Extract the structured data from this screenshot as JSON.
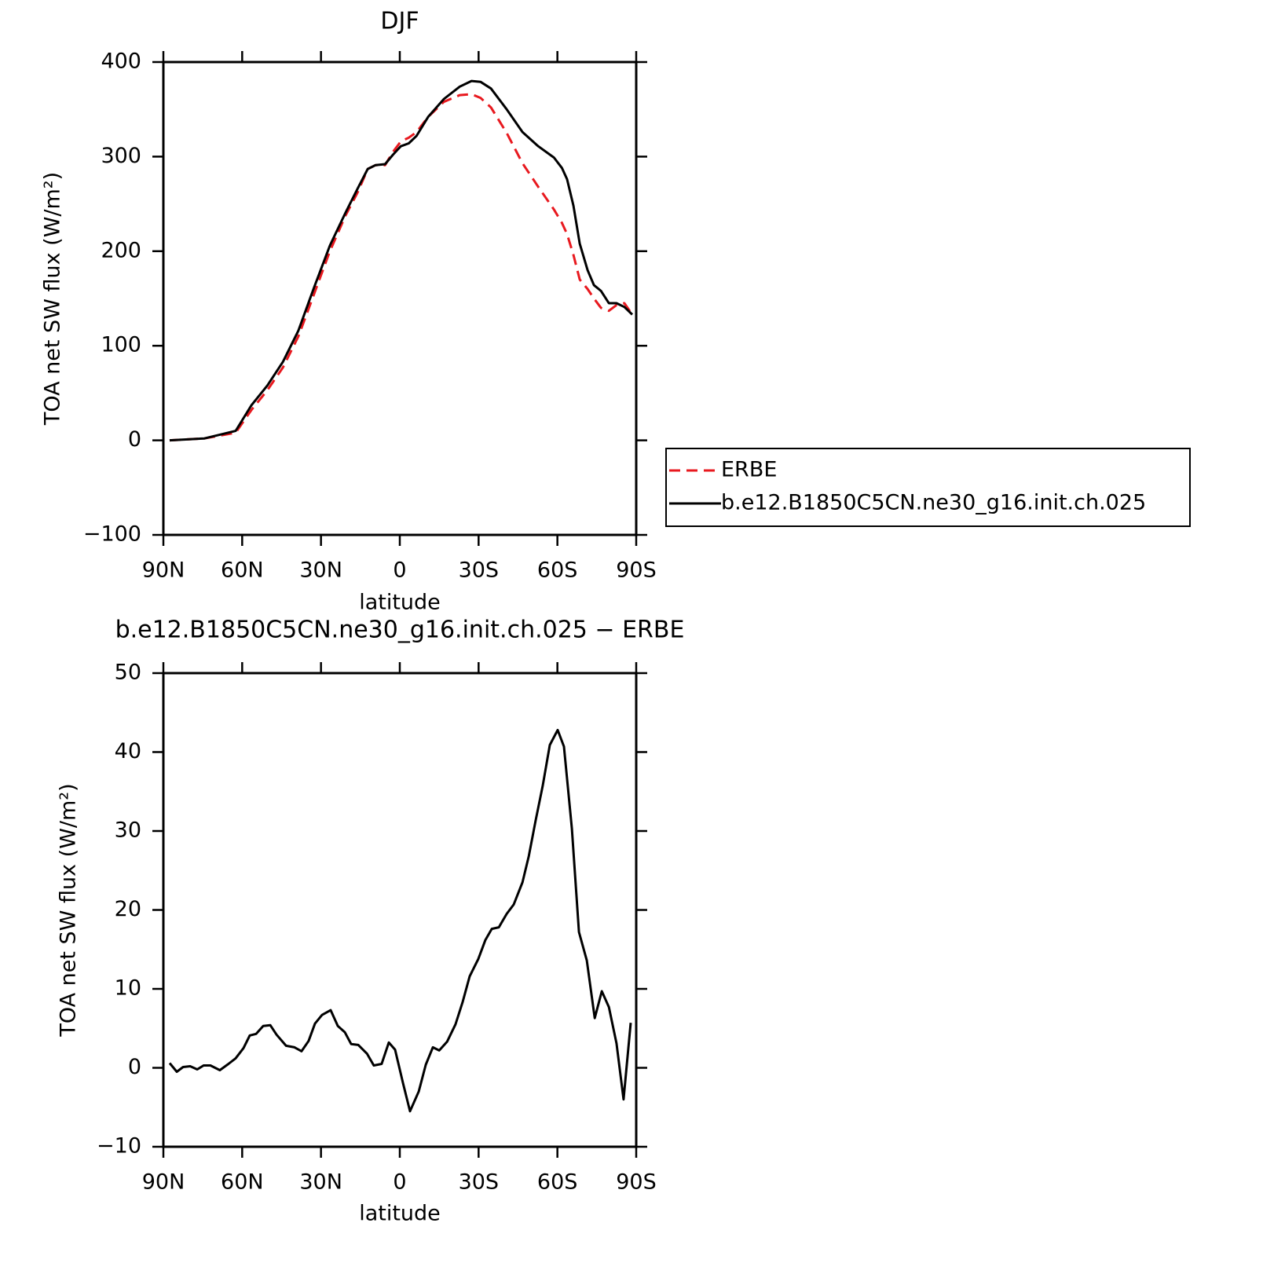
{
  "chart_data": [
    {
      "type": "line",
      "title": "DJF",
      "xlabel": "latitude",
      "ylabel": "TOA net SW flux (W/m²)",
      "x": [
        87.6,
        74.4,
        68.5,
        62.5,
        56.5,
        50.4,
        44.5,
        38.6,
        32.6,
        26.6,
        20.6,
        16.1,
        12.2,
        9.2,
        5.6,
        2.6,
        -0.4,
        -3.4,
        -6.4,
        -10.8,
        -16.8,
        -22.8,
        -27.3,
        -30.8,
        -34.7,
        -40.7,
        -46.7,
        -52.7,
        -58.7,
        -61.7,
        -63.7,
        -66.1,
        -68.5,
        -71.5,
        -73.9,
        -76.6,
        -79.6,
        -82.5,
        -85.5,
        -88.5
      ],
      "series": [
        {
          "name": "ERBE",
          "color": "#e8191f",
          "dashed": true,
          "values": [
            0,
            2,
            5,
            8,
            32,
            53,
            77,
            110,
            155,
            200,
            238,
            262,
            287,
            291,
            291,
            305,
            316,
            320,
            326,
            342,
            358,
            365,
            366,
            362,
            352,
            325,
            293,
            268,
            244,
            230,
            218,
            196,
            170,
            160,
            150,
            140,
            137,
            143,
            145,
            133
          ]
        },
        {
          "name": "b.e12.B1850C5CN.ne30_g16.init.ch.025",
          "color": "#000000",
          "dashed": false,
          "values": [
            0,
            2,
            6,
            10,
            37,
            58,
            83,
            116,
            162,
            206,
            241,
            266,
            287,
            291,
            292,
            302,
            311,
            314,
            322,
            342,
            361,
            374,
            380,
            379,
            372,
            350,
            326,
            311,
            299,
            288,
            276,
            248,
            208,
            180,
            164,
            158,
            145,
            145,
            141,
            133
          ]
        }
      ],
      "xlim": [
        90,
        -90
      ],
      "xticks": [
        {
          "value": 90,
          "label": "90N"
        },
        {
          "value": 60,
          "label": "60N"
        },
        {
          "value": 30,
          "label": "30N"
        },
        0,
        {
          "value": -30,
          "label": "30S"
        },
        {
          "value": -60,
          "label": "60S"
        },
        {
          "value": -90,
          "label": "90S"
        }
      ],
      "ylim": [
        -100,
        400
      ],
      "yticks": [
        {
          "value": -100,
          "label": "−100"
        },
        0,
        100,
        200,
        300,
        400
      ],
      "legend": "right"
    },
    {
      "type": "line",
      "title": "b.e12.B1850C5CN.ne30_g16.init.ch.025 − ERBE",
      "xlabel": "latitude",
      "ylabel": "TOA net SW flux (W/m²)",
      "x": [
        87.6,
        84.9,
        82.5,
        79.8,
        77.1,
        74.7,
        72.1,
        68.5,
        65.2,
        62.5,
        59.5,
        57.1,
        54.7,
        52.0,
        49.3,
        46.9,
        43.3,
        40.1,
        37.4,
        34.7,
        32.3,
        29.6,
        26.3,
        23.6,
        20.9,
        18.5,
        15.8,
        12.5,
        9.9,
        6.9,
        4.2,
        1.8,
        -1.2,
        -3.9,
        -7.2,
        -9.9,
        -12.6,
        -15.0,
        -18.0,
        -21.2,
        -23.9,
        -26.6,
        -29.9,
        -32.6,
        -35.0,
        -37.7,
        -40.7,
        -43.4,
        -46.7,
        -49.1,
        -51.7,
        -54.4,
        -57.1,
        -60.1,
        -62.5,
        -65.5,
        -68.2,
        -71.2,
        -74.2,
        -76.9,
        -79.6,
        -82.5,
        -85.2,
        -87.9
      ],
      "series": [
        {
          "color": "#000000",
          "dashed": false,
          "values": [
            0.6,
            -0.5,
            0.1,
            0.2,
            -0.2,
            0.3,
            0.3,
            -0.3,
            0.5,
            1.2,
            2.5,
            4.1,
            4.3,
            5.3,
            5.4,
            4.2,
            2.8,
            2.6,
            2.1,
            3.4,
            5.6,
            6.7,
            7.3,
            5.3,
            4.5,
            3.0,
            2.9,
            1.8,
            0.3,
            0.5,
            3.2,
            2.3,
            -1.9,
            -5.5,
            -3.0,
            0.4,
            2.6,
            2.2,
            3.3,
            5.5,
            8.3,
            11.6,
            13.8,
            16.2,
            17.6,
            17.8,
            19.5,
            20.7,
            23.5,
            26.8,
            31.3,
            35.7,
            40.9,
            42.8,
            40.7,
            30.3,
            17.2,
            13.6,
            6.3,
            9.7,
            7.7,
            3.1,
            -4.0,
            5.7
          ]
        }
      ],
      "xlim": [
        90,
        -90
      ],
      "xticks": [
        {
          "value": 90,
          "label": "90N"
        },
        {
          "value": 60,
          "label": "60N"
        },
        {
          "value": 30,
          "label": "30N"
        },
        0,
        {
          "value": -30,
          "label": "30S"
        },
        {
          "value": -60,
          "label": "60S"
        },
        {
          "value": -90,
          "label": "90S"
        }
      ],
      "ylim": [
        -10,
        50
      ],
      "yticks": [
        {
          "value": -10,
          "label": "−10"
        },
        0,
        10,
        20,
        30,
        40,
        50
      ]
    }
  ]
}
